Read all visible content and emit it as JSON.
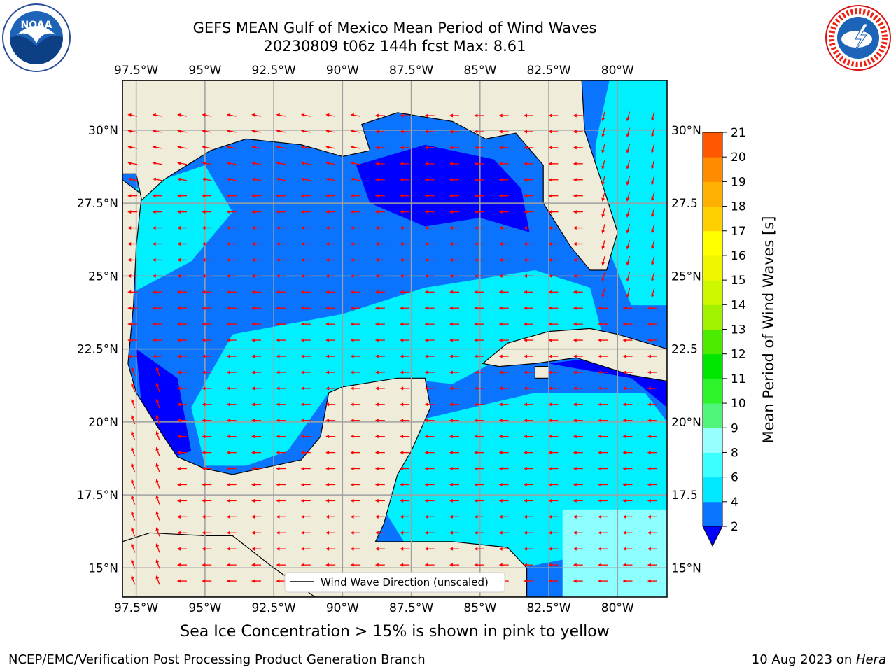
{
  "title": {
    "line1": "GEFS MEAN Gulf of Mexico Mean Period of Wind Waves",
    "line2": "20230809 t06z 144h fcst   Max: 8.61"
  },
  "logos": {
    "left": {
      "icon": "noaa-logo-icon",
      "text": "NOAA"
    },
    "right": {
      "icon": "nws-logo-icon",
      "text": "NATIONAL WEATHER SERVICE"
    }
  },
  "map": {
    "lon_ticks": [
      "97.5°W",
      "95°W",
      "92.5°W",
      "90°W",
      "87.5°W",
      "85°W",
      "82.5°W",
      "80°W"
    ],
    "lat_ticks_left": [
      "30°N",
      "27.5°N",
      "25°N",
      "22.5°N",
      "20°N",
      "17.5°N",
      "15°N"
    ],
    "lat_ticks_right": [
      "30°N",
      "27.5",
      "25°N",
      "22.5",
      "20°N",
      "17.5",
      "15°N"
    ],
    "lon_range": [
      -98,
      -78.2
    ],
    "lat_range": [
      14,
      31.7
    ],
    "legend_label": "Wind Wave Direction (unscaled)",
    "arrow_color": "#ff0000",
    "land_color": "#efecda"
  },
  "colorbar": {
    "label": "Mean Period of Wind Waves [s]",
    "ticks": [
      "2",
      "4",
      "6",
      "8",
      "9",
      "10",
      "11",
      "12",
      "13",
      "14",
      "15",
      "16",
      "17",
      "18",
      "19",
      "20",
      "21"
    ],
    "colors": [
      "#0a74ff",
      "#00e8ff",
      "#3cffff",
      "#98ffff",
      "#50f67a",
      "#2ef42c",
      "#00e600",
      "#4bec00",
      "#a2f200",
      "#cdf800",
      "#eff600",
      "#ffff00",
      "#ffd000",
      "#ffb000",
      "#ff8c00",
      "#ff5800",
      "#ff2800",
      "#ff0000"
    ],
    "under_color": "#0000ff"
  },
  "ice_note": "Sea Ice Concentration > 15% is shown in pink to yellow",
  "footer": {
    "left": "NCEP/EMC/Verification Post Processing Product Generation Branch",
    "right_date": "10 Aug 2023 on ",
    "right_host": "Hera"
  }
}
